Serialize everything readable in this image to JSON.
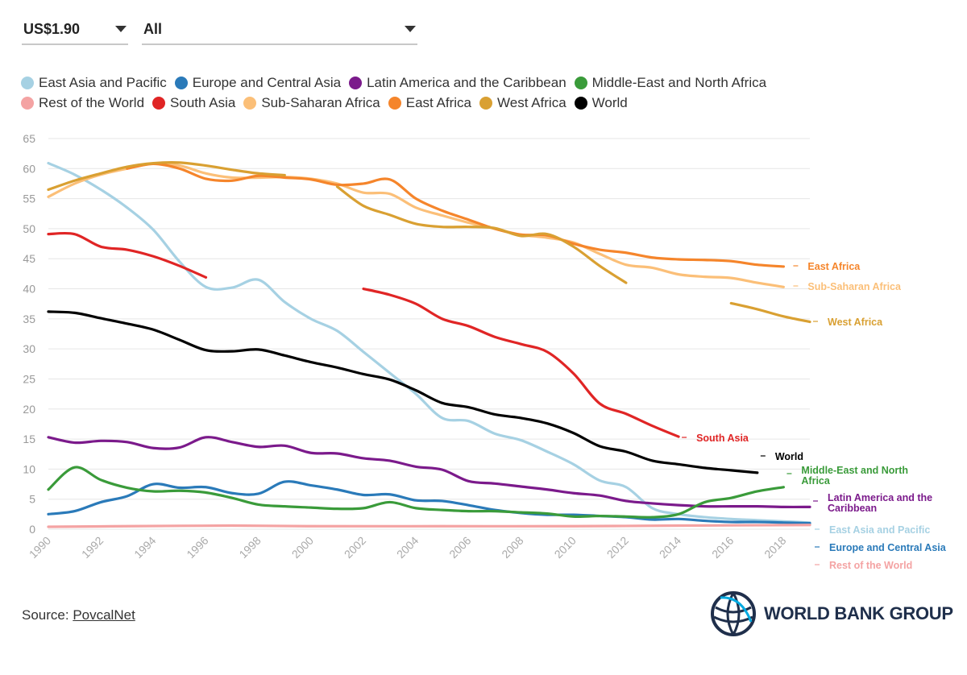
{
  "controls": {
    "poverty_line": "US$1.90",
    "region": "All"
  },
  "source": {
    "prefix": "Source: ",
    "link": "PovcalNet"
  },
  "logo": {
    "text": "WORLD BANK GROUP"
  },
  "chart_data": {
    "type": "line",
    "title": "",
    "xlabel": "",
    "ylabel": "",
    "xlim": [
      1990,
      2019
    ],
    "ylim": [
      0,
      65
    ],
    "yticks": [
      0,
      5,
      10,
      15,
      20,
      25,
      30,
      35,
      40,
      45,
      50,
      55,
      60,
      65
    ],
    "xticks": [
      1990,
      1992,
      1994,
      1996,
      1998,
      2000,
      2002,
      2004,
      2006,
      2008,
      2010,
      2012,
      2014,
      2016,
      2018
    ],
    "grid": true,
    "legend": "top",
    "series": [
      {
        "name": "East Asia and Pacific",
        "color": "#a6d1e3",
        "end_label": "East Asia and Pacific",
        "segments": [
          [
            [
              1990,
              60.9
            ],
            [
              1991,
              59.0
            ],
            [
              1992,
              56.5
            ],
            [
              1993,
              53.5
            ],
            [
              1994,
              49.8
            ],
            [
              1995,
              44.5
            ],
            [
              1996,
              40.3
            ],
            [
              1997,
              40.2
            ],
            [
              1998,
              41.5
            ],
            [
              1999,
              37.8
            ],
            [
              2000,
              35.0
            ],
            [
              2001,
              33.0
            ],
            [
              2002,
              29.5
            ],
            [
              2003,
              26.0
            ],
            [
              2004,
              22.5
            ],
            [
              2005,
              18.5
            ],
            [
              2006,
              18.0
            ],
            [
              2007,
              15.9
            ],
            [
              2008,
              14.8
            ],
            [
              2009,
              12.9
            ],
            [
              2010,
              10.8
            ],
            [
              2011,
              8.1
            ],
            [
              2012,
              7.0
            ],
            [
              2013,
              3.5
            ],
            [
              2014,
              2.5
            ],
            [
              2015,
              2.0
            ],
            [
              2016,
              1.7
            ],
            [
              2017,
              1.5
            ],
            [
              2018,
              1.3
            ],
            [
              2019,
              1.1
            ]
          ]
        ]
      },
      {
        "name": "Europe and Central Asia",
        "color": "#2a7ab9",
        "end_label": "Europe and Central Asia",
        "segments": [
          [
            [
              1990,
              2.5
            ],
            [
              1991,
              3.0
            ],
            [
              1992,
              4.5
            ],
            [
              1993,
              5.5
            ],
            [
              1994,
              7.5
            ],
            [
              1995,
              6.9
            ],
            [
              1996,
              7.0
            ],
            [
              1997,
              6.0
            ],
            [
              1998,
              5.9
            ],
            [
              1999,
              7.9
            ],
            [
              2000,
              7.3
            ],
            [
              2001,
              6.6
            ],
            [
              2002,
              5.7
            ],
            [
              2003,
              5.8
            ],
            [
              2004,
              4.8
            ],
            [
              2005,
              4.7
            ],
            [
              2006,
              4.0
            ],
            [
              2007,
              3.2
            ],
            [
              2008,
              2.7
            ],
            [
              2009,
              2.4
            ],
            [
              2010,
              2.4
            ],
            [
              2011,
              2.2
            ],
            [
              2012,
              2.0
            ],
            [
              2013,
              1.6
            ],
            [
              2014,
              1.7
            ],
            [
              2015,
              1.4
            ],
            [
              2016,
              1.2
            ],
            [
              2017,
              1.2
            ],
            [
              2018,
              1.1
            ],
            [
              2019,
              1.0
            ]
          ]
        ]
      },
      {
        "name": "Latin America and the Caribbean",
        "color": "#7b1a8b",
        "end_label": "Latin America and the Caribbean",
        "segments": [
          [
            [
              1990,
              15.3
            ],
            [
              1991,
              14.4
            ],
            [
              1992,
              14.7
            ],
            [
              1993,
              14.5
            ],
            [
              1994,
              13.5
            ],
            [
              1995,
              13.6
            ],
            [
              1996,
              15.3
            ],
            [
              1997,
              14.5
            ],
            [
              1998,
              13.7
            ],
            [
              1999,
              13.9
            ],
            [
              2000,
              12.7
            ],
            [
              2001,
              12.6
            ],
            [
              2002,
              11.8
            ],
            [
              2003,
              11.4
            ],
            [
              2004,
              10.4
            ],
            [
              2005,
              9.9
            ],
            [
              2006,
              8.0
            ],
            [
              2007,
              7.6
            ],
            [
              2008,
              7.1
            ],
            [
              2009,
              6.6
            ],
            [
              2010,
              6.0
            ],
            [
              2011,
              5.6
            ],
            [
              2012,
              4.7
            ],
            [
              2013,
              4.3
            ],
            [
              2014,
              4.0
            ],
            [
              2015,
              3.8
            ],
            [
              2016,
              3.8
            ],
            [
              2017,
              3.8
            ],
            [
              2018,
              3.7
            ],
            [
              2019,
              3.7
            ]
          ]
        ]
      },
      {
        "name": "Middle-East and North Africa",
        "color": "#3a9b3a",
        "end_label": "Middle-East and North Africa",
        "segments": [
          [
            [
              1990,
              6.6
            ],
            [
              1991,
              10.3
            ],
            [
              1992,
              8.2
            ],
            [
              1993,
              6.9
            ],
            [
              1994,
              6.3
            ],
            [
              1995,
              6.4
            ],
            [
              1996,
              6.1
            ],
            [
              1997,
              5.2
            ],
            [
              1998,
              4.1
            ],
            [
              1999,
              3.8
            ],
            [
              2000,
              3.6
            ],
            [
              2001,
              3.4
            ],
            [
              2002,
              3.5
            ],
            [
              2003,
              4.5
            ],
            [
              2004,
              3.5
            ],
            [
              2005,
              3.2
            ],
            [
              2006,
              3.0
            ],
            [
              2007,
              3.0
            ],
            [
              2008,
              2.8
            ],
            [
              2009,
              2.6
            ],
            [
              2010,
              2.1
            ],
            [
              2011,
              2.2
            ],
            [
              2012,
              2.1
            ],
            [
              2013,
              2.0
            ],
            [
              2014,
              2.5
            ],
            [
              2015,
              4.5
            ],
            [
              2016,
              5.2
            ],
            [
              2017,
              6.3
            ],
            [
              2018,
              7.0
            ]
          ]
        ]
      },
      {
        "name": "Rest of the World",
        "color": "#f4a3a3",
        "end_label": "Rest of the World",
        "segments": [
          [
            [
              1990,
              0.4
            ],
            [
              1993,
              0.5
            ],
            [
              1997,
              0.6
            ],
            [
              2000,
              0.5
            ],
            [
              2005,
              0.5
            ],
            [
              2010,
              0.5
            ],
            [
              2014,
              0.6
            ],
            [
              2019,
              0.7
            ]
          ]
        ]
      },
      {
        "name": "South Asia",
        "color": "#e02525",
        "end_label": "South Asia",
        "segments": [
          [
            [
              1990,
              49.1
            ],
            [
              1991,
              49.1
            ],
            [
              1992,
              47.0
            ],
            [
              1993,
              46.5
            ],
            [
              1994,
              45.4
            ],
            [
              1995,
              43.8
            ],
            [
              1996,
              41.9
            ]
          ],
          [
            [
              2002,
              40.0
            ],
            [
              2003,
              39.0
            ],
            [
              2004,
              37.5
            ],
            [
              2005,
              35.0
            ],
            [
              2006,
              33.8
            ],
            [
              2007,
              32.0
            ],
            [
              2008,
              30.8
            ],
            [
              2009,
              29.5
            ],
            [
              2010,
              25.9
            ],
            [
              2011,
              20.9
            ],
            [
              2012,
              19.2
            ],
            [
              2013,
              17.2
            ],
            [
              2014,
              15.4
            ]
          ]
        ]
      },
      {
        "name": "Sub-Saharan Africa",
        "color": "#fbbf78",
        "end_label": "Sub-Saharan Africa",
        "segments": [
          [
            [
              1990,
              55.3
            ],
            [
              1991,
              57.5
            ],
            [
              1992,
              59.0
            ],
            [
              1993,
              60.0
            ],
            [
              1994,
              60.8
            ],
            [
              1995,
              60.5
            ],
            [
              1996,
              59.2
            ],
            [
              1997,
              58.5
            ],
            [
              1998,
              58.5
            ],
            [
              1999,
              58.6
            ],
            [
              2000,
              58.3
            ],
            [
              2001,
              57.5
            ],
            [
              2002,
              56.0
            ],
            [
              2003,
              55.8
            ],
            [
              2004,
              53.5
            ],
            [
              2005,
              52.2
            ],
            [
              2006,
              51.0
            ],
            [
              2007,
              50.0
            ],
            [
              2008,
              49.0
            ],
            [
              2009,
              48.5
            ],
            [
              2010,
              47.7
            ],
            [
              2011,
              45.8
            ],
            [
              2012,
              44.0
            ],
            [
              2013,
              43.5
            ],
            [
              2014,
              42.4
            ],
            [
              2015,
              42.0
            ],
            [
              2016,
              41.8
            ],
            [
              2017,
              41.0
            ],
            [
              2018,
              40.3
            ]
          ]
        ]
      },
      {
        "name": "East Africa",
        "color": "#f5852b",
        "end_label": "East Africa",
        "segments": [
          [
            [
              1993,
              60.0
            ],
            [
              1994,
              60.8
            ],
            [
              1995,
              60.0
            ],
            [
              1996,
              58.3
            ],
            [
              1997,
              58.0
            ],
            [
              1998,
              58.8
            ],
            [
              1999,
              58.5
            ],
            [
              2000,
              58.2
            ],
            [
              2001,
              57.3
            ],
            [
              2002,
              57.5
            ],
            [
              2003,
              58.2
            ],
            [
              2004,
              55.0
            ],
            [
              2005,
              53.0
            ],
            [
              2006,
              51.5
            ],
            [
              2007,
              50.0
            ],
            [
              2008,
              49.0
            ],
            [
              2009,
              48.9
            ],
            [
              2010,
              47.5
            ],
            [
              2011,
              46.5
            ],
            [
              2012,
              46.0
            ],
            [
              2013,
              45.2
            ],
            [
              2014,
              44.9
            ],
            [
              2015,
              44.8
            ],
            [
              2016,
              44.6
            ],
            [
              2017,
              44.0
            ],
            [
              2018,
              43.7
            ]
          ]
        ]
      },
      {
        "name": "West Africa",
        "color": "#d9a032",
        "end_label": "West Africa",
        "segments": [
          [
            [
              1990,
              56.5
            ],
            [
              1991,
              58.0
            ],
            [
              1992,
              59.2
            ],
            [
              1993,
              60.3
            ],
            [
              1994,
              60.9
            ],
            [
              1995,
              61.0
            ],
            [
              1996,
              60.5
            ],
            [
              1997,
              59.8
            ],
            [
              1998,
              59.2
            ],
            [
              1999,
              58.9
            ]
          ],
          [
            [
              2001,
              57.0
            ],
            [
              2002,
              53.8
            ],
            [
              2003,
              52.3
            ],
            [
              2004,
              50.8
            ],
            [
              2005,
              50.3
            ],
            [
              2006,
              50.3
            ],
            [
              2007,
              50.1
            ],
            [
              2008,
              48.8
            ],
            [
              2009,
              49.1
            ],
            [
              2010,
              47.0
            ],
            [
              2011,
              43.8
            ],
            [
              2012,
              41.0
            ]
          ],
          [
            [
              2016,
              37.6
            ],
            [
              2017,
              36.6
            ],
            [
              2018,
              35.4
            ],
            [
              2019,
              34.5
            ]
          ]
        ]
      },
      {
        "name": "World",
        "color": "#000000",
        "end_label": "World",
        "segments": [
          [
            [
              1990,
              36.2
            ],
            [
              1991,
              36.0
            ],
            [
              1992,
              35.1
            ],
            [
              1993,
              34.2
            ],
            [
              1994,
              33.2
            ],
            [
              1995,
              31.5
            ],
            [
              1996,
              29.8
            ],
            [
              1997,
              29.6
            ],
            [
              1998,
              29.9
            ],
            [
              1999,
              28.9
            ],
            [
              2000,
              27.8
            ],
            [
              2001,
              26.9
            ],
            [
              2002,
              25.8
            ],
            [
              2003,
              24.9
            ],
            [
              2004,
              23.1
            ],
            [
              2005,
              21.0
            ],
            [
              2006,
              20.3
            ],
            [
              2007,
              19.1
            ],
            [
              2008,
              18.5
            ],
            [
              2009,
              17.6
            ],
            [
              2010,
              16.0
            ],
            [
              2011,
              13.8
            ],
            [
              2012,
              12.9
            ],
            [
              2013,
              11.4
            ],
            [
              2014,
              10.8
            ],
            [
              2015,
              10.2
            ],
            [
              2016,
              9.8
            ],
            [
              2017,
              9.4
            ]
          ]
        ]
      }
    ]
  }
}
